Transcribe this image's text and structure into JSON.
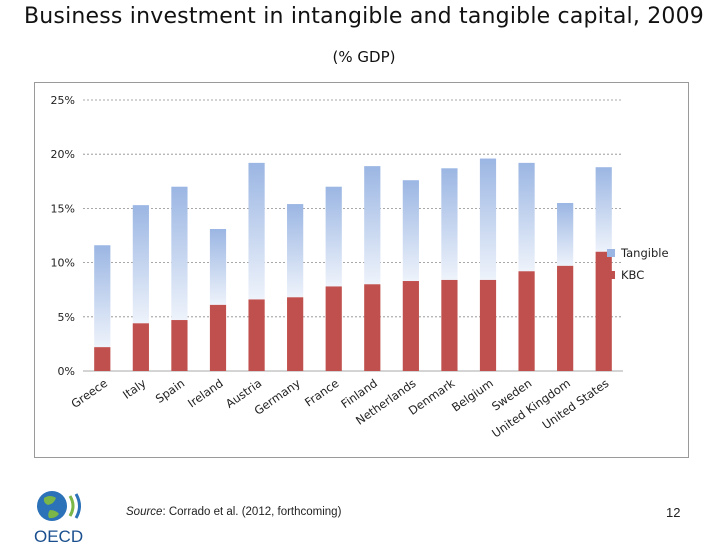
{
  "title": "Business investment in intangible and tangible capital, 2009",
  "subtitle": "(% GDP)",
  "source": {
    "prefix": "Source",
    "text": ": Corrado et al. (2012, forthcoming)"
  },
  "page_number": "12",
  "logo": {
    "text": "OECD"
  },
  "colors": {
    "kbc": "#c0504d",
    "tangible_top": "#9bb6e3",
    "tangible_bottom": "#eef3fb",
    "grid": "#8c8c8c"
  },
  "chart_data": {
    "type": "bar",
    "stacked": true,
    "title": "Business investment in intangible and tangible capital, 2009",
    "subtitle": "(% GDP)",
    "categories": [
      "Greece",
      "Italy",
      "Spain",
      "Ireland",
      "Austria",
      "Germany",
      "France",
      "Finland",
      "Netherlands",
      "Denmark",
      "Belgium",
      "Sweden",
      "United Kingdom",
      "United States"
    ],
    "series": [
      {
        "name": "KBC",
        "values": [
          2.2,
          4.4,
          4.7,
          6.1,
          6.6,
          6.8,
          7.8,
          8.0,
          8.3,
          8.4,
          8.4,
          9.2,
          9.7,
          11.0
        ]
      },
      {
        "name": "Tangible",
        "values": [
          9.4,
          10.9,
          12.3,
          7.0,
          12.6,
          8.6,
          9.2,
          10.9,
          9.3,
          10.3,
          11.2,
          10.0,
          5.8,
          7.8
        ]
      }
    ],
    "ylim": [
      0,
      25
    ],
    "yticks": [
      0,
      5,
      10,
      15,
      20,
      25
    ],
    "ytick_labels": [
      "0%",
      "5%",
      "10%",
      "15%",
      "20%",
      "25%"
    ],
    "grid": true,
    "legend": {
      "position": "right",
      "entries": [
        "Tangible",
        "KBC"
      ]
    },
    "xlabel": "",
    "ylabel": ""
  }
}
